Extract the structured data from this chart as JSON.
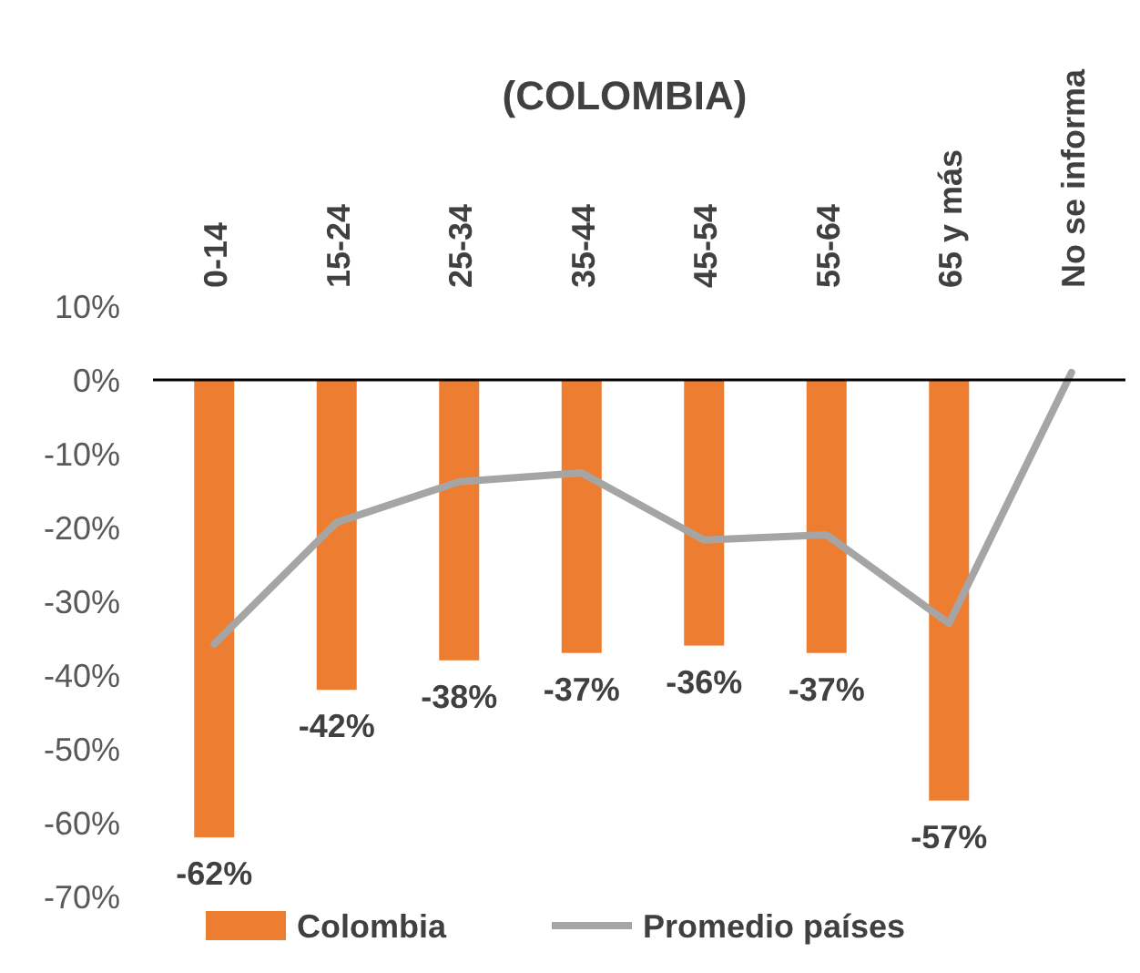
{
  "chart_data": {
    "type": "bar",
    "title": "(COLOMBIA)",
    "categories": [
      "0-14",
      "15-24",
      "25-34",
      "35-44",
      "45-54",
      "55-64",
      "65 y más",
      "No se informa"
    ],
    "series": [
      {
        "name": "Colombia",
        "color": "#ed7d31",
        "values": [
          -62,
          -42,
          -38,
          -37,
          -36,
          -37,
          -57,
          null
        ],
        "value_labels": [
          "-62%",
          "-42%",
          "-38%",
          "-37%",
          "-36%",
          "-37%",
          "-57%",
          null
        ]
      },
      {
        "name": "Promedio países",
        "type": "line",
        "color": "#a5a5a5",
        "values": [
          -35.8,
          -19.3,
          -13.8,
          -12.6,
          -21.7,
          -21,
          -33,
          1
        ]
      }
    ],
    "ylim": [
      -70,
      10
    ],
    "yticks": [
      {
        "value": 10,
        "label": "10%"
      },
      {
        "value": 0,
        "label": "0%"
      },
      {
        "value": -10,
        "label": "-10%"
      },
      {
        "value": -20,
        "label": "-20%"
      },
      {
        "value": -30,
        "label": "-30%"
      },
      {
        "value": -40,
        "label": "-40%"
      },
      {
        "value": -50,
        "label": "-50%"
      },
      {
        "value": -60,
        "label": "-60%"
      },
      {
        "value": -70,
        "label": "-70%"
      }
    ],
    "legend": "bottom",
    "marker": "none",
    "line_style": "solid"
  }
}
